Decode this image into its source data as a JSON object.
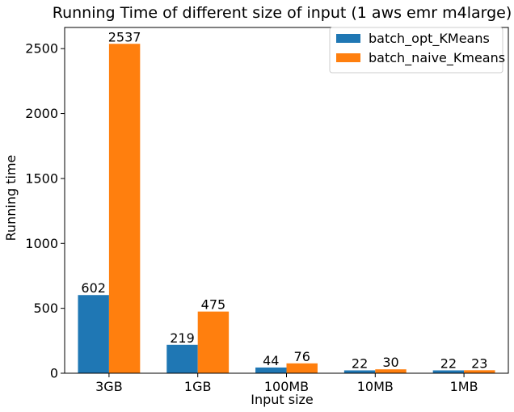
{
  "chart_data": {
    "type": "bar",
    "title": "Running Time of different size of input (1 aws emr m4large)",
    "xlabel": "Input size",
    "ylabel": "Running time",
    "categories": [
      "3GB",
      "1GB",
      "100MB",
      "10MB",
      "1MB"
    ],
    "series": [
      {
        "name": "batch_opt_KMeans",
        "values": [
          602,
          219,
          44,
          22,
          22
        ],
        "color": "#1f77b4"
      },
      {
        "name": "batch_naive_Kmeans",
        "values": [
          2537,
          475,
          76,
          30,
          23
        ],
        "color": "#ff7f0e"
      }
    ],
    "ylim": [
      0,
      2663
    ],
    "yticks": [
      0,
      500,
      1000,
      1500,
      2000,
      2500
    ],
    "grid": false,
    "legend_position": "top-right",
    "data_labels": true
  }
}
